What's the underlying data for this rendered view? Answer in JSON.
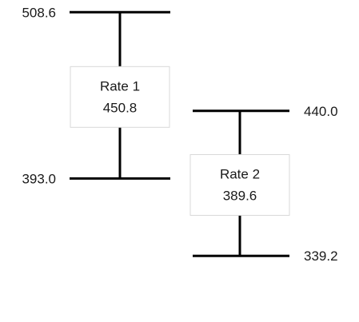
{
  "chart_data": {
    "type": "range",
    "title": "",
    "xlabel": "",
    "ylabel": "",
    "ylim": [
      330,
      515
    ],
    "series": [
      {
        "name": "Rate 1",
        "high": 508.6,
        "mid": 450.8,
        "low": 393.0,
        "high_label": "508.6",
        "mid_label": "450.8",
        "low_label": "393.0"
      },
      {
        "name": "Rate 2",
        "high": 440.0,
        "mid": 389.6,
        "low": 339.2,
        "high_label": "440.0",
        "mid_label": "389.6",
        "low_label": "339.2"
      }
    ]
  }
}
